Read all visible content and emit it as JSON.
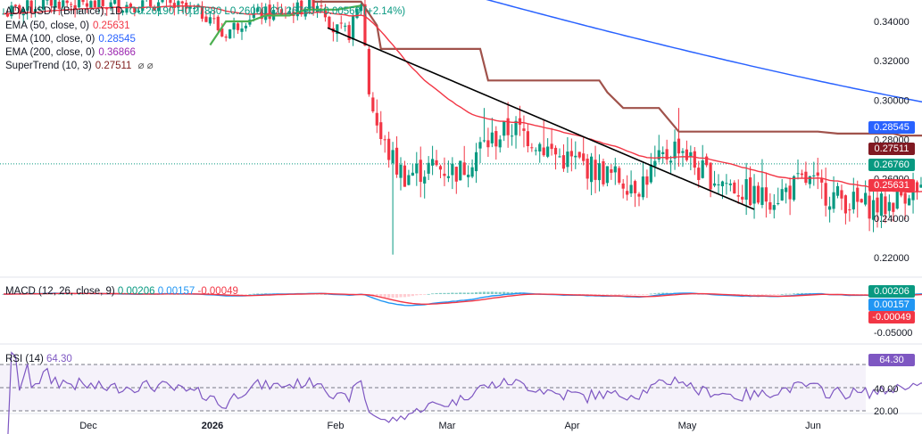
{
  "header": {
    "symbol": "ADA/USDT (Binance), 1D",
    "ohlc": "O0.26190 H0.27880 L0.26000 C0.26760 +0.00560 (+2.14%)"
  },
  "indicators": [
    {
      "label": "EMA (50, close, 0)",
      "value": "0.25631",
      "color": "#f23645"
    },
    {
      "label": "EMA (100, close, 0)",
      "value": "0.28545",
      "color": "#2962ff"
    },
    {
      "label": "EMA (200, close, 0)",
      "value": "0.36866",
      "color": "#9c27b0"
    },
    {
      "label": "SuperTrend (10, 3)",
      "value": "0.27511",
      "color": "#7f1d1d",
      "icons": "⌀ ⌀"
    }
  ],
  "macd_legend": {
    "label": "MACD (12, 26, close, 9)",
    "v1": "0.00206",
    "v2": "0.00157",
    "v3": "-0.00049"
  },
  "rsi_legend": {
    "label": "RSI (14)",
    "value": "64.30"
  },
  "price_labels": [
    {
      "text": "0.28545",
      "color": "#2962ff"
    },
    {
      "text": "0.27511",
      "color": "#801922"
    },
    {
      "text": "0.26760",
      "color": "#089981"
    },
    {
      "text": "0.25631",
      "color": "#f23645"
    }
  ],
  "macd_labels": [
    {
      "text": "0.00206",
      "color": "#089981"
    },
    {
      "text": "0.00157",
      "color": "#2196f3"
    },
    {
      "text": "-0.00049",
      "color": "#f23645"
    }
  ],
  "rsi_label": {
    "text": "64.30",
    "color": "#7e57c2"
  },
  "chart_data": {
    "type": "candlestick",
    "price_ticks": [
      "0.34000",
      "0.32000",
      "0.30000",
      "0.28000",
      "0.26000",
      "0.24000",
      "0.22000"
    ],
    "macd_ticks": [
      "-0.05000"
    ],
    "rsi_ticks": [
      "40.00",
      "20.00"
    ],
    "x_labels": [
      "Dec",
      "2026",
      "Feb",
      "Mar",
      "Apr",
      "May",
      "Jun"
    ],
    "ylim": [
      0.21,
      0.35
    ],
    "last_close": 0.2676,
    "ema50_last": 0.25631,
    "ema100_last": 0.28545,
    "supertrend_last": 0.27511,
    "rsi_last": 64.3,
    "rsi_bands": [
      30,
      50,
      70
    ],
    "trendline": {
      "start": 0.3367,
      "end": 0.2445
    }
  }
}
